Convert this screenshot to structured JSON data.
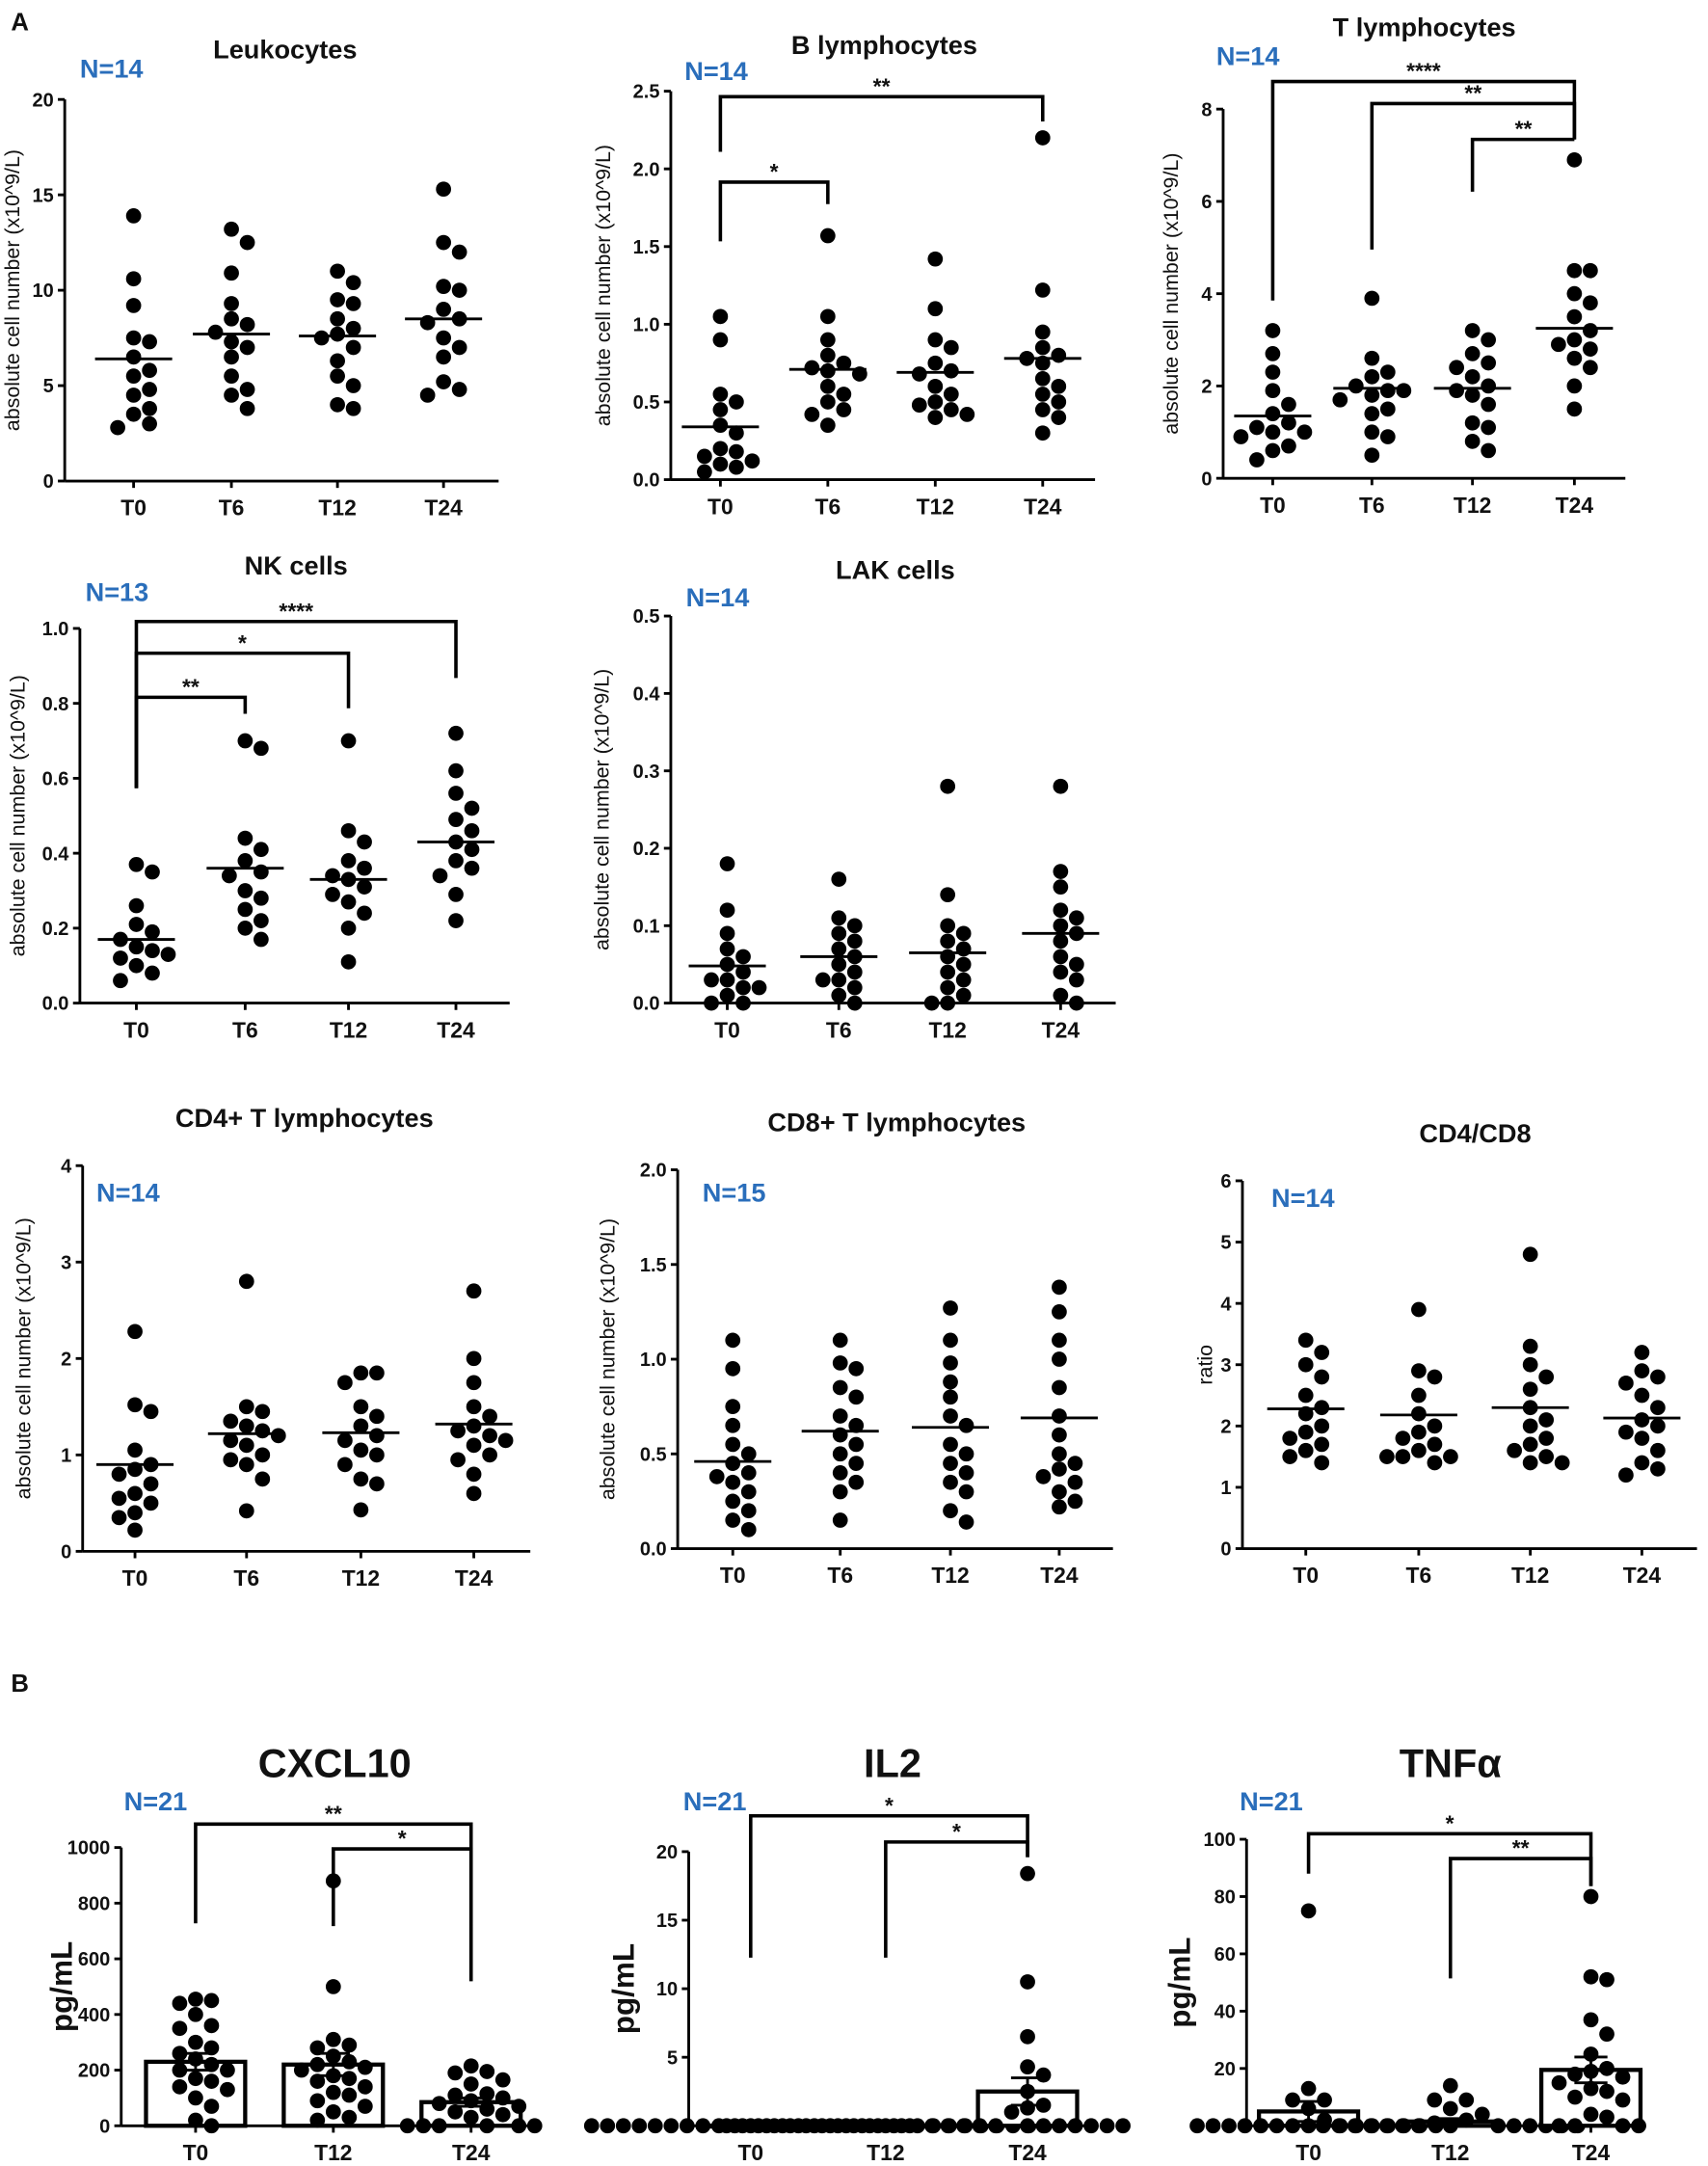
{
  "section_labels": [
    "A",
    "B"
  ],
  "chart_data": [
    {
      "type": "scatter",
      "title": "Leukocytes",
      "n_label": "N=14",
      "ylabel": "absolute cell number (x10^9/L)",
      "ylim": [
        0,
        20
      ],
      "yticks": [
        "0",
        "5",
        "10",
        "15",
        "20"
      ],
      "categories": [
        "T0",
        "T6",
        "T12",
        "T24"
      ],
      "series": [
        [
          13.9,
          10.6,
          9.2,
          7.5,
          7.3,
          6.5,
          5.8,
          5.5,
          4.8,
          4.5,
          3.8,
          3.5,
          3.0,
          2.8
        ],
        [
          13.2,
          12.5,
          10.9,
          9.3,
          8.5,
          8.2,
          7.8,
          7.3,
          7.0,
          6.5,
          5.5,
          4.8,
          4.5,
          3.8
        ],
        [
          11.0,
          10.4,
          9.5,
          9.3,
          8.5,
          8.0,
          7.7,
          7.5,
          7.0,
          6.3,
          5.5,
          5.0,
          4.0,
          3.8
        ],
        [
          15.3,
          12.5,
          12.0,
          10.2,
          10.0,
          9.0,
          8.5,
          8.3,
          7.5,
          7.0,
          6.5,
          5.2,
          4.8,
          4.5
        ]
      ],
      "means": [
        6.4,
        7.7,
        7.6,
        8.5
      ],
      "significance": []
    },
    {
      "type": "scatter",
      "title": "B lymphocytes",
      "n_label": "N=14",
      "ylabel": "absolute cell number (x10^9/L)",
      "ylim": [
        0,
        2.5
      ],
      "yticks": [
        "0.0",
        "0.5",
        "1.0",
        "1.5",
        "2.0",
        "2.5"
      ],
      "categories": [
        "T0",
        "T6",
        "T12",
        "T24"
      ],
      "series": [
        [
          1.05,
          0.9,
          0.55,
          0.5,
          0.45,
          0.35,
          0.3,
          0.2,
          0.18,
          0.15,
          0.12,
          0.1,
          0.08,
          0.05
        ],
        [
          1.57,
          1.05,
          0.9,
          0.8,
          0.75,
          0.72,
          0.7,
          0.68,
          0.6,
          0.55,
          0.5,
          0.45,
          0.42,
          0.35
        ],
        [
          1.42,
          1.1,
          0.9,
          0.85,
          0.75,
          0.7,
          0.68,
          0.6,
          0.55,
          0.5,
          0.48,
          0.45,
          0.42,
          0.4
        ],
        [
          2.2,
          1.22,
          0.95,
          0.85,
          0.8,
          0.78,
          0.75,
          0.65,
          0.6,
          0.55,
          0.5,
          0.45,
          0.4,
          0.3
        ]
      ],
      "means": [
        0.34,
        0.71,
        0.69,
        0.78
      ],
      "significance": [
        {
          "from": "T0",
          "to": "T6",
          "label": "*"
        },
        {
          "from": "T0",
          "to": "T24",
          "label": "**"
        }
      ]
    },
    {
      "type": "scatter",
      "title": "T lymphocytes",
      "n_label": "N=14",
      "ylabel": "absolute cell number (x10^9/L)",
      "ylim": [
        0,
        8
      ],
      "yticks": [
        "0",
        "2",
        "4",
        "6",
        "8"
      ],
      "categories": [
        "T0",
        "T6",
        "T12",
        "T24"
      ],
      "series": [
        [
          3.2,
          2.7,
          2.3,
          1.9,
          1.6,
          1.4,
          1.2,
          1.1,
          1.0,
          1.0,
          0.9,
          0.7,
          0.6,
          0.4
        ],
        [
          3.9,
          2.6,
          2.3,
          2.2,
          2.0,
          1.9,
          1.9,
          1.8,
          1.7,
          1.5,
          1.4,
          1.0,
          0.9,
          0.5
        ],
        [
          3.2,
          3.0,
          2.7,
          2.5,
          2.4,
          2.2,
          2.0,
          1.9,
          1.8,
          1.6,
          1.2,
          1.1,
          0.8,
          0.6
        ],
        [
          6.9,
          4.5,
          4.5,
          4.0,
          3.8,
          3.5,
          3.2,
          3.0,
          2.9,
          2.8,
          2.6,
          2.4,
          2.0,
          1.5
        ]
      ],
      "means": [
        1.35,
        1.95,
        1.95,
        3.25
      ],
      "significance": [
        {
          "from": "T0",
          "to": "T24",
          "label": "****"
        },
        {
          "from": "T6",
          "to": "T24",
          "label": "**"
        },
        {
          "from": "T12",
          "to": "T24",
          "label": "**"
        }
      ]
    },
    {
      "type": "scatter",
      "title": "NK cells",
      "n_label": "N=13",
      "ylabel": "absolute cell number (x10^9/L)",
      "ylim": [
        0,
        1.0
      ],
      "yticks": [
        "0.0",
        "0.2",
        "0.4",
        "0.6",
        "0.8",
        "1.0"
      ],
      "categories": [
        "T0",
        "T6",
        "T12",
        "T24"
      ],
      "series": [
        [
          0.37,
          0.35,
          0.26,
          0.21,
          0.19,
          0.17,
          0.15,
          0.14,
          0.13,
          0.12,
          0.1,
          0.08,
          0.06
        ],
        [
          0.7,
          0.68,
          0.44,
          0.41,
          0.38,
          0.35,
          0.34,
          0.3,
          0.28,
          0.25,
          0.22,
          0.2,
          0.17
        ],
        [
          0.7,
          0.46,
          0.43,
          0.38,
          0.36,
          0.34,
          0.33,
          0.31,
          0.29,
          0.27,
          0.24,
          0.2,
          0.11
        ],
        [
          0.72,
          0.62,
          0.56,
          0.52,
          0.49,
          0.46,
          0.43,
          0.41,
          0.38,
          0.36,
          0.34,
          0.29,
          0.22
        ]
      ],
      "means": [
        0.17,
        0.36,
        0.33,
        0.43
      ],
      "significance": [
        {
          "from": "T0",
          "to": "T24",
          "label": "****"
        },
        {
          "from": "T0",
          "to": "T12",
          "label": "*"
        },
        {
          "from": "T0",
          "to": "T6",
          "label": "**"
        }
      ]
    },
    {
      "type": "scatter",
      "title": "LAK cells",
      "n_label": "N=14",
      "ylabel": "absolute cell number (x10^9/L)",
      "ylim": [
        0,
        0.5
      ],
      "yticks": [
        "0.0",
        "0.1",
        "0.2",
        "0.3",
        "0.4",
        "0.5"
      ],
      "categories": [
        "T0",
        "T6",
        "T12",
        "T24"
      ],
      "series": [
        [
          0.18,
          0.12,
          0.09,
          0.07,
          0.06,
          0.05,
          0.04,
          0.03,
          0.03,
          0.02,
          0.02,
          0.01,
          0,
          0
        ],
        [
          0.16,
          0.11,
          0.1,
          0.09,
          0.08,
          0.07,
          0.06,
          0.05,
          0.04,
          0.03,
          0.03,
          0.02,
          0.01,
          0
        ],
        [
          0.28,
          0.14,
          0.1,
          0.09,
          0.08,
          0.07,
          0.06,
          0.05,
          0.04,
          0.03,
          0.02,
          0.01,
          0,
          0
        ],
        [
          0.28,
          0.17,
          0.15,
          0.12,
          0.11,
          0.1,
          0.09,
          0.08,
          0.06,
          0.05,
          0.04,
          0.03,
          0.01,
          0
        ]
      ],
      "means": [
        0.048,
        0.06,
        0.065,
        0.09
      ],
      "significance": []
    },
    {
      "type": "scatter",
      "title": "CD4+ T lymphocytes",
      "n_label": "N=14",
      "ylabel": "absolute cell number (x10^9/L)",
      "ylim": [
        0,
        4
      ],
      "yticks": [
        "0",
        "1",
        "2",
        "3",
        "4"
      ],
      "categories": [
        "T0",
        "T6",
        "T12",
        "T24"
      ],
      "series": [
        [
          2.28,
          1.52,
          1.45,
          1.05,
          0.9,
          0.85,
          0.8,
          0.7,
          0.6,
          0.55,
          0.5,
          0.4,
          0.35,
          0.22
        ],
        [
          2.8,
          1.5,
          1.45,
          1.35,
          1.3,
          1.25,
          1.2,
          1.15,
          1.1,
          1.0,
          0.95,
          0.9,
          0.75,
          0.42
        ],
        [
          1.85,
          1.85,
          1.75,
          1.5,
          1.4,
          1.3,
          1.2,
          1.15,
          1.05,
          1.0,
          0.9,
          0.75,
          0.7,
          0.43
        ],
        [
          2.7,
          2.0,
          1.75,
          1.5,
          1.4,
          1.3,
          1.25,
          1.2,
          1.15,
          1.1,
          1.0,
          0.95,
          0.8,
          0.6
        ]
      ],
      "means": [
        0.9,
        1.22,
        1.23,
        1.32
      ],
      "significance": []
    },
    {
      "type": "scatter",
      "title": "CD8+ T lymphocytes",
      "n_label": "N=15",
      "ylabel": "absolute cell number (x10^9/L)",
      "ylim": [
        0,
        2.0
      ],
      "yticks": [
        "0.0",
        "0.5",
        "1.0",
        "1.5",
        "2.0"
      ],
      "categories": [
        "T0",
        "T6",
        "T12",
        "T24"
      ],
      "series": [
        [
          1.1,
          0.95,
          0.75,
          0.65,
          0.55,
          0.5,
          0.45,
          0.4,
          0.38,
          0.35,
          0.3,
          0.25,
          0.2,
          0.15,
          0.1
        ],
        [
          1.1,
          0.98,
          0.95,
          0.85,
          0.8,
          0.7,
          0.65,
          0.6,
          0.55,
          0.5,
          0.45,
          0.4,
          0.35,
          0.3,
          0.15
        ],
        [
          1.27,
          1.1,
          0.98,
          0.88,
          0.8,
          0.7,
          0.65,
          0.55,
          0.5,
          0.45,
          0.4,
          0.35,
          0.3,
          0.2,
          0.14
        ],
        [
          1.38,
          1.25,
          1.1,
          1.0,
          0.85,
          0.7,
          0.6,
          0.5,
          0.45,
          0.42,
          0.38,
          0.35,
          0.3,
          0.25,
          0.22
        ]
      ],
      "means": [
        0.46,
        0.62,
        0.64,
        0.69
      ],
      "significance": []
    },
    {
      "type": "scatter",
      "title": "CD4/CD8",
      "n_label": "N=14",
      "ylabel": "ratio",
      "ylim": [
        0,
        6
      ],
      "yticks": [
        "0",
        "1",
        "2",
        "3",
        "4",
        "5",
        "6"
      ],
      "categories": [
        "T0",
        "T6",
        "T12",
        "T24"
      ],
      "series": [
        [
          3.4,
          3.2,
          3.0,
          2.8,
          2.5,
          2.3,
          2.2,
          2.0,
          1.9,
          1.8,
          1.7,
          1.6,
          1.5,
          1.4
        ],
        [
          3.9,
          2.9,
          2.8,
          2.5,
          2.2,
          2.0,
          1.9,
          1.8,
          1.7,
          1.6,
          1.5,
          1.5,
          1.4,
          1.5
        ],
        [
          4.8,
          3.3,
          3.0,
          2.8,
          2.6,
          2.3,
          2.1,
          2.0,
          1.8,
          1.7,
          1.6,
          1.5,
          1.4,
          1.4
        ],
        [
          3.2,
          2.9,
          2.8,
          2.7,
          2.5,
          2.3,
          2.1,
          2.0,
          1.9,
          1.8,
          1.6,
          1.4,
          1.3,
          1.2
        ]
      ],
      "means": [
        2.28,
        2.18,
        2.3,
        2.13
      ],
      "significance": []
    },
    {
      "type": "bar",
      "title": "CXCL10",
      "n_label": "N=21",
      "ylabel": "pg/mL",
      "ylim": [
        0,
        1000
      ],
      "yticks": [
        "0",
        "200",
        "400",
        "600",
        "800",
        "1000"
      ],
      "categories": [
        "T0",
        "T12",
        "T24"
      ],
      "series": [
        [
          455,
          440,
          450,
          400,
          360,
          350,
          300,
          280,
          260,
          240,
          220,
          200,
          200,
          170,
          160,
          140,
          130,
          100,
          70,
          20,
          0
        ],
        [
          880,
          500,
          310,
          290,
          280,
          250,
          230,
          220,
          210,
          200,
          180,
          170,
          160,
          140,
          120,
          110,
          90,
          70,
          50,
          30,
          20
        ],
        [
          215,
          195,
          190,
          165,
          150,
          115,
          110,
          100,
          90,
          80,
          70,
          60,
          50,
          40,
          30,
          0,
          0,
          0,
          0,
          0,
          0
        ]
      ],
      "means": [
        230,
        220,
        85
      ],
      "sem": [
        30,
        40,
        15
      ],
      "significance": [
        {
          "from": "T0",
          "to": "T24",
          "label": "**"
        },
        {
          "from": "T12",
          "to": "T24",
          "label": "*"
        }
      ]
    },
    {
      "type": "bar",
      "title": "IL2",
      "n_label": "N=21",
      "ylabel": "pg/mL",
      "ylim": [
        0,
        20
      ],
      "yticks": [
        "0",
        "5",
        "10",
        "15",
        "20"
      ],
      "categories": [
        "T0",
        "T12",
        "T24"
      ],
      "series": [
        [
          0,
          0,
          0,
          0,
          0,
          0,
          0,
          0,
          0,
          0,
          0,
          0,
          0,
          0,
          0,
          0,
          0,
          0,
          0,
          0,
          0
        ],
        [
          0,
          0,
          0,
          0,
          0,
          0,
          0,
          0,
          0,
          0,
          0,
          0,
          0,
          0,
          0,
          0,
          0,
          0,
          0,
          0,
          0
        ],
        [
          18.4,
          10.5,
          6.5,
          4.3,
          3.7,
          2.5,
          1.5,
          1.3,
          1.0,
          0,
          0,
          0,
          0,
          0,
          0,
          0,
          0,
          0,
          0,
          0,
          0
        ]
      ],
      "means": [
        0,
        0,
        2.5
      ],
      "sem": [
        0,
        0,
        1.0
      ],
      "significance": [
        {
          "from": "T0",
          "to": "T24",
          "label": "*"
        },
        {
          "from": "T12",
          "to": "T24",
          "label": "*"
        }
      ]
    },
    {
      "type": "bar",
      "title": "TNFα",
      "n_label": "N=21",
      "ylabel": "pg/mL",
      "ylim": [
        0,
        100
      ],
      "yticks": [
        "0",
        "20",
        "40",
        "60",
        "80",
        "100"
      ],
      "categories": [
        "T0",
        "T12",
        "T24"
      ],
      "series": [
        [
          75,
          13,
          9,
          9,
          6,
          2,
          0,
          0,
          0,
          0,
          0,
          0,
          0,
          0,
          0,
          0,
          0,
          0,
          0,
          0,
          0
        ],
        [
          14,
          9,
          9,
          6,
          4,
          2,
          1,
          0,
          0,
          0,
          0,
          0,
          0,
          0,
          0,
          0,
          0,
          0,
          0,
          0,
          0
        ],
        [
          80,
          52,
          51,
          37,
          32,
          25,
          20,
          19,
          18,
          17,
          15,
          13,
          12,
          10,
          9,
          4,
          3,
          0,
          0,
          0,
          0
        ]
      ],
      "means": [
        5,
        1.5,
        19.5
      ],
      "sem": [
        3.5,
        1,
        4.5
      ],
      "significance": [
        {
          "from": "T0",
          "to": "T24",
          "label": "*"
        },
        {
          "from": "T12",
          "to": "T24",
          "label": "**"
        }
      ]
    }
  ]
}
